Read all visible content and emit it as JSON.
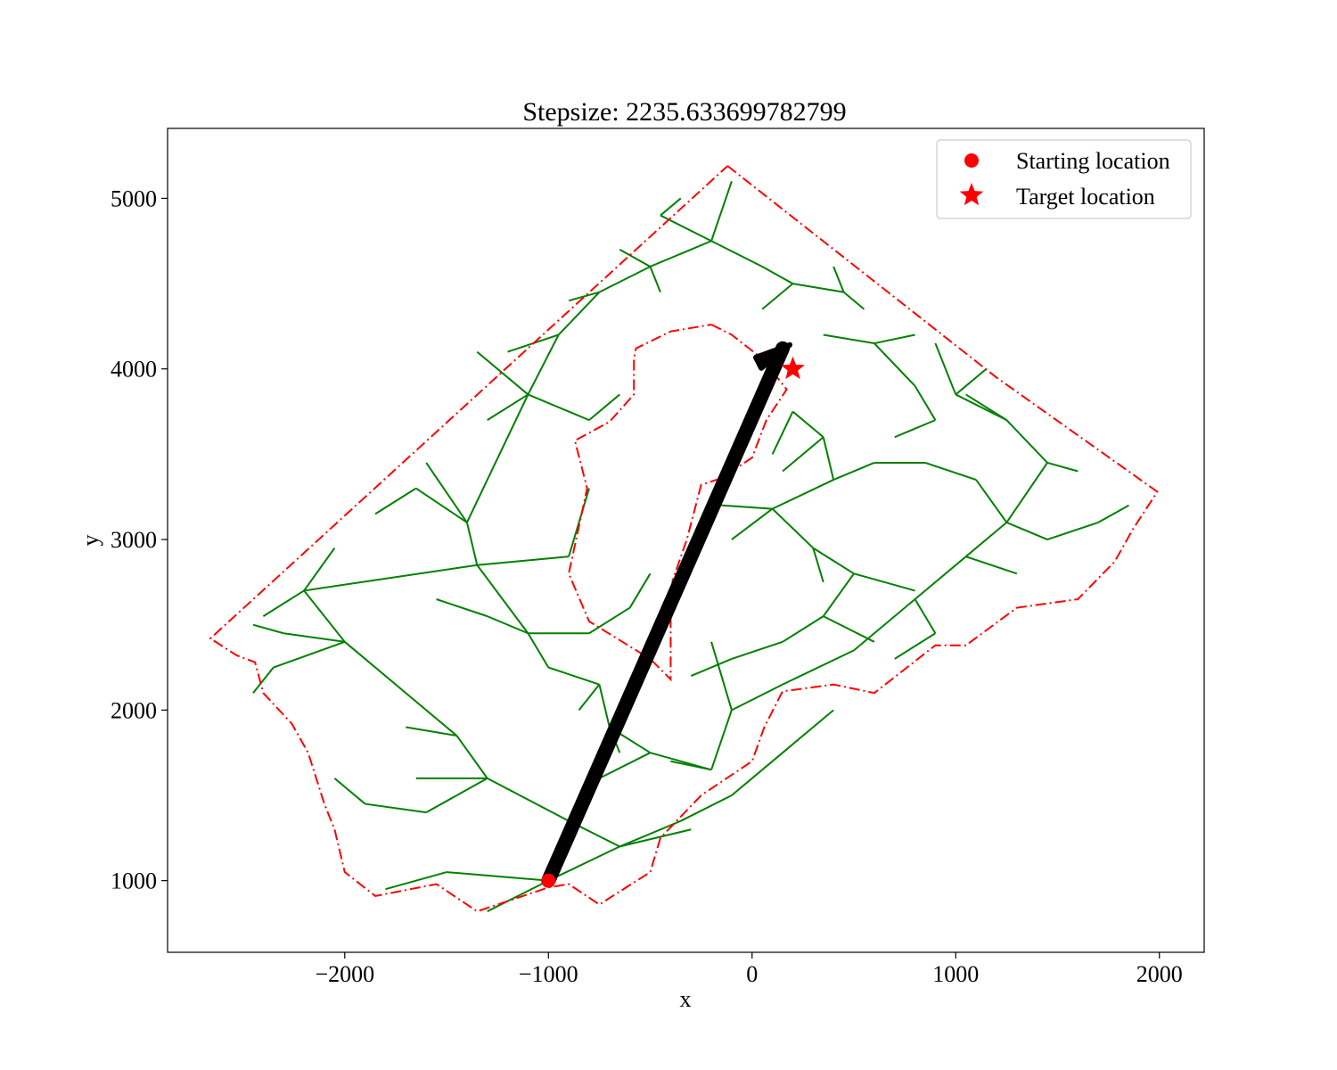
{
  "chart_data": {
    "type": "scatter",
    "title": "Stepsize: 2235.633699782799",
    "xlabel": "x",
    "ylabel": "y",
    "xlim": [
      -2870,
      2220
    ],
    "ylim": [
      580,
      5410
    ],
    "xticks": [
      -2000,
      -1000,
      0,
      1000,
      2000
    ],
    "xtick_labels": [
      "−2000",
      "−1000",
      "0",
      "1000",
      "2000"
    ],
    "yticks": [
      1000,
      2000,
      3000,
      4000,
      5000
    ],
    "ytick_labels": [
      "1000",
      "2000",
      "3000",
      "4000",
      "5000"
    ],
    "grid": false,
    "legend_position": "upper right",
    "colors": {
      "boundary": "#ff0000",
      "tree": "#008000",
      "path": "#000000",
      "markers": "#ff0000"
    },
    "legend": [
      {
        "label": "Starting location",
        "marker": "circle",
        "color": "#ff0000"
      },
      {
        "label": "Target location",
        "marker": "star",
        "color": "#ff0000"
      }
    ],
    "start": {
      "x": -1000,
      "y": 1000
    },
    "target": {
      "x": 200,
      "y": 4000
    },
    "path": [
      {
        "x": -1000,
        "y": 1000
      },
      {
        "x": 150,
        "y": 4120
      }
    ],
    "outer_boundary": [
      [
        -120,
        5190
      ],
      [
        1200,
        3950
      ],
      [
        1990,
        3280
      ],
      [
        1870,
        3060
      ],
      [
        1780,
        2870
      ],
      [
        1600,
        2650
      ],
      [
        1300,
        2600
      ],
      [
        1050,
        2380
      ],
      [
        900,
        2380
      ],
      [
        600,
        2100
      ],
      [
        400,
        2150
      ],
      [
        150,
        2110
      ],
      [
        60,
        1900
      ],
      [
        0,
        1700
      ],
      [
        -250,
        1500
      ],
      [
        -450,
        1250
      ],
      [
        -500,
        1050
      ],
      [
        -750,
        860
      ],
      [
        -900,
        980
      ],
      [
        -1000,
        960
      ],
      [
        -1150,
        900
      ],
      [
        -1350,
        820
      ],
      [
        -1550,
        980
      ],
      [
        -1850,
        910
      ],
      [
        -2000,
        1050
      ],
      [
        -2050,
        1300
      ],
      [
        -2100,
        1450
      ],
      [
        -2180,
        1750
      ],
      [
        -2260,
        1920
      ],
      [
        -2400,
        2100
      ],
      [
        -2440,
        2280
      ],
      [
        -2530,
        2320
      ],
      [
        -2660,
        2420
      ],
      [
        -120,
        5190
      ]
    ],
    "obstacle": [
      [
        -200,
        4260
      ],
      [
        -100,
        4200
      ],
      [
        50,
        4060
      ],
      [
        170,
        3880
      ],
      [
        70,
        3700
      ],
      [
        0,
        3480
      ],
      [
        -150,
        3360
      ],
      [
        -250,
        3320
      ],
      [
        -320,
        3000
      ],
      [
        -390,
        2760
      ],
      [
        -400,
        2540
      ],
      [
        -400,
        2180
      ],
      [
        -500,
        2300
      ],
      [
        -800,
        2520
      ],
      [
        -900,
        2800
      ],
      [
        -810,
        3300
      ],
      [
        -870,
        3580
      ],
      [
        -700,
        3690
      ],
      [
        -580,
        3850
      ],
      [
        -580,
        4060
      ],
      [
        -570,
        4120
      ],
      [
        -400,
        4220
      ],
      [
        -200,
        4260
      ]
    ],
    "tree_edges": [
      [
        -1000,
        1000,
        -1300,
        820
      ],
      [
        -1000,
        1000,
        -650,
        1200
      ],
      [
        -650,
        1200,
        -300,
        1300
      ],
      [
        -650,
        1200,
        -900,
        1350
      ],
      [
        -900,
        1350,
        -1300,
        1600
      ],
      [
        -1300,
        1600,
        -1650,
        1600
      ],
      [
        -1300,
        1600,
        -1450,
        1850
      ],
      [
        -1450,
        1850,
        -1700,
        2100
      ],
      [
        -1700,
        2100,
        -2000,
        2400
      ],
      [
        -2000,
        2400,
        -2200,
        2700
      ],
      [
        -2200,
        2700,
        -2400,
        2550
      ],
      [
        -2200,
        2700,
        -2050,
        2950
      ],
      [
        -2200,
        2700,
        -1350,
        2850
      ],
      [
        -1350,
        2850,
        -900,
        2900
      ],
      [
        -1350,
        2850,
        -1400,
        3100
      ],
      [
        -1400,
        3100,
        -1600,
        3450
      ],
      [
        -1400,
        3100,
        -1100,
        3850
      ],
      [
        -1100,
        3850,
        -950,
        4200
      ],
      [
        -950,
        4200,
        -750,
        4450
      ],
      [
        -750,
        4450,
        -500,
        4600
      ],
      [
        -500,
        4600,
        -200,
        4750
      ],
      [
        -200,
        4750,
        -100,
        5100
      ],
      [
        -200,
        4750,
        -450,
        4900
      ],
      [
        -750,
        4450,
        -900,
        4400
      ],
      [
        -1100,
        3850,
        -1300,
        3700
      ],
      [
        -1100,
        3850,
        -1350,
        4100
      ],
      [
        -1350,
        2850,
        -1100,
        2450
      ],
      [
        -1100,
        2450,
        -800,
        2450
      ],
      [
        -1100,
        2450,
        -1000,
        2250
      ],
      [
        -1000,
        2250,
        -750,
        2150
      ],
      [
        -750,
        2150,
        -700,
        1900
      ],
      [
        -700,
        1900,
        -500,
        1750
      ],
      [
        -500,
        1750,
        -200,
        1650
      ],
      [
        -200,
        1650,
        -100,
        2000
      ],
      [
        -100,
        2000,
        -200,
        2400
      ],
      [
        -100,
        2000,
        150,
        2150
      ],
      [
        150,
        2150,
        500,
        2350
      ],
      [
        500,
        2350,
        800,
        2650
      ],
      [
        800,
        2650,
        1050,
        2900
      ],
      [
        1050,
        2900,
        1250,
        3100
      ],
      [
        1250,
        3100,
        1450,
        3000
      ],
      [
        1450,
        3000,
        1700,
        3100
      ],
      [
        1250,
        3100,
        1450,
        3450
      ],
      [
        1450,
        3450,
        1250,
        3700
      ],
      [
        1250,
        3700,
        1000,
        3850
      ],
      [
        1000,
        3850,
        900,
        4150
      ],
      [
        1250,
        3100,
        1100,
        3350
      ],
      [
        1100,
        3350,
        850,
        3450
      ],
      [
        850,
        3450,
        600,
        3450
      ],
      [
        600,
        3450,
        400,
        3350
      ],
      [
        400,
        3350,
        350,
        3600
      ],
      [
        350,
        3600,
        200,
        3750
      ],
      [
        200,
        3750,
        100,
        3500
      ],
      [
        400,
        3350,
        100,
        3180
      ],
      [
        100,
        3180,
        -100,
        3000
      ],
      [
        100,
        3180,
        300,
        2950
      ],
      [
        300,
        2950,
        500,
        2800
      ],
      [
        500,
        2800,
        800,
        2700
      ],
      [
        500,
        2800,
        350,
        2550
      ],
      [
        350,
        2550,
        150,
        2400
      ],
      [
        150,
        2400,
        -100,
        2300
      ],
      [
        350,
        2550,
        600,
        2400
      ],
      [
        -650,
        1200,
        -350,
        1350
      ],
      [
        -350,
        1350,
        -100,
        1500
      ],
      [
        -100,
        1500,
        150,
        1750
      ],
      [
        150,
        1750,
        400,
        2000
      ],
      [
        -1000,
        1000,
        -1500,
        1050
      ],
      [
        -1500,
        1050,
        -1800,
        950
      ],
      [
        -1300,
        1600,
        -1600,
        1400
      ],
      [
        -1600,
        1400,
        -1900,
        1450
      ],
      [
        -1900,
        1450,
        -2050,
        1600
      ],
      [
        -1450,
        1850,
        -1700,
        1900
      ],
      [
        -2000,
        2400,
        -2350,
        2250
      ],
      [
        -2350,
        2250,
        -2450,
        2100
      ],
      [
        -2000,
        2400,
        -2300,
        2450
      ],
      [
        -2300,
        2450,
        -2450,
        2500
      ],
      [
        -1400,
        3100,
        -1650,
        3300
      ],
      [
        -1650,
        3300,
        -1850,
        3150
      ],
      [
        -1100,
        2450,
        -1300,
        2550
      ],
      [
        -1300,
        2550,
        -1550,
        2650
      ],
      [
        -800,
        2450,
        -600,
        2600
      ],
      [
        -600,
        2600,
        -500,
        2800
      ],
      [
        -900,
        2900,
        -800,
        3300
      ],
      [
        -1100,
        3850,
        -800,
        3700
      ],
      [
        -800,
        3700,
        -650,
        3850
      ],
      [
        -950,
        4200,
        -1200,
        4100
      ],
      [
        -500,
        4600,
        -450,
        4450
      ],
      [
        -500,
        4600,
        -650,
        4700
      ],
      [
        -450,
        4900,
        -350,
        5000
      ],
      [
        -200,
        4750,
        50,
        4600
      ],
      [
        50,
        4600,
        200,
        4500
      ],
      [
        200,
        4500,
        450,
        4450
      ],
      [
        450,
        4450,
        550,
        4350
      ],
      [
        450,
        4450,
        400,
        4600
      ],
      [
        200,
        4500,
        50,
        4350
      ],
      [
        800,
        4200,
        600,
        4150
      ],
      [
        600,
        4150,
        350,
        4200
      ],
      [
        600,
        4150,
        800,
        3900
      ],
      [
        800,
        3900,
        900,
        3700
      ],
      [
        900,
        3700,
        700,
        3600
      ],
      [
        350,
        3600,
        150,
        3400
      ],
      [
        100,
        3180,
        -150,
        3200
      ],
      [
        300,
        2950,
        350,
        2750
      ],
      [
        -100,
        2300,
        -300,
        2200
      ],
      [
        -200,
        1650,
        -400,
        1700
      ],
      [
        -500,
        1750,
        -750,
        1600
      ],
      [
        -750,
        2150,
        -850,
        2000
      ],
      [
        -700,
        1900,
        -650,
        1750
      ],
      [
        800,
        2650,
        900,
        2450
      ],
      [
        900,
        2450,
        700,
        2300
      ],
      [
        1050,
        2900,
        1300,
        2800
      ],
      [
        1700,
        3100,
        1850,
        3200
      ],
      [
        1450,
        3450,
        1600,
        3400
      ],
      [
        1250,
        3700,
        1050,
        3850
      ],
      [
        1000,
        3850,
        1150,
        4000
      ]
    ]
  }
}
